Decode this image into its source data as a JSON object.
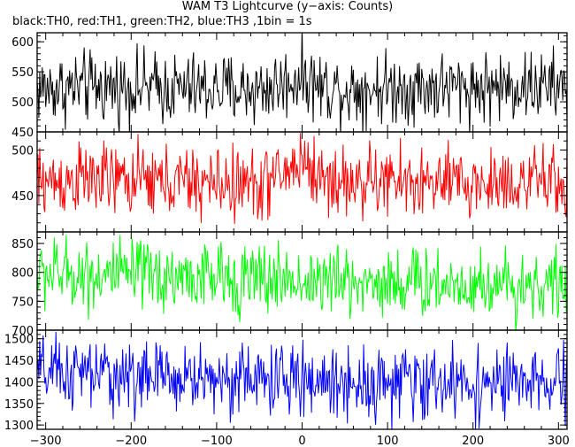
{
  "header": {
    "title": "WAM T3 Lightcurve (y−axis: Counts)",
    "subtitle": "black:TH0, red:TH1, green:TH2, blue:TH3 ,1bin = 1s"
  },
  "chart_data": {
    "type": "line",
    "title": "WAM T3 Lightcurve (y−axis: Counts)",
    "subtitle": "black:TH0, red:TH1, green:TH2, blue:TH3 ,1bin = 1s",
    "xlim": [
      -310,
      310
    ],
    "x_ticks": [
      -300,
      -200,
      -100,
      0,
      100,
      200,
      300
    ],
    "x_tick_labels": [
      "−300",
      "−200",
      "−100",
      "0",
      "100",
      "200",
      "300"
    ],
    "bin_seconds": 1,
    "grid": false,
    "panels": [
      {
        "series": "TH0",
        "color": "#000000",
        "ylim": [
          450,
          615
        ],
        "y_ticks": [
          450,
          500,
          550,
          600
        ],
        "y_tick_labels": [
          "450",
          "500",
          "550",
          "600"
        ],
        "x": [
          -300,
          -250,
          -200,
          -150,
          -100,
          -50,
          -20,
          0,
          20,
          50,
          100,
          150,
          200,
          250,
          300
        ],
        "y": [
          522,
          524,
          525,
          522,
          521,
          520,
          530,
          545,
          525,
          521,
          524,
          525,
          524,
          526,
          524
        ]
      },
      {
        "series": "TH1",
        "color": "#ff0000",
        "ylim": [
          410,
          520
        ],
        "y_ticks": [
          450,
          500
        ],
        "y_tick_labels": [
          "450",
          "500"
        ],
        "x": [
          -300,
          -250,
          -200,
          -150,
          -100,
          -50,
          -20,
          0,
          20,
          50,
          100,
          150,
          200,
          250,
          300
        ],
        "y": [
          465,
          468,
          466,
          465,
          463,
          462,
          474,
          490,
          470,
          464,
          466,
          463,
          462,
          466,
          463
        ]
      },
      {
        "series": "TH2",
        "color": "#00ff00",
        "ylim": [
          700,
          870
        ],
        "y_ticks": [
          700,
          750,
          800,
          850
        ],
        "y_tick_labels": [
          "700",
          "750",
          "800",
          "850"
        ],
        "x": [
          -300,
          -250,
          -200,
          -150,
          -100,
          -50,
          0,
          50,
          100,
          150,
          200,
          250,
          300
        ],
        "y": [
          798,
          797,
          794,
          792,
          790,
          788,
          786,
          784,
          783,
          782,
          780,
          779,
          778
        ]
      },
      {
        "series": "TH3",
        "color": "#0000ff",
        "ylim": [
          1290,
          1520
        ],
        "y_ticks": [
          1300,
          1350,
          1400,
          1450,
          1500
        ],
        "y_tick_labels": [
          "1300",
          "1350",
          "1400",
          "1450",
          "1500"
        ],
        "x": [
          -300,
          -250,
          -200,
          -150,
          -100,
          -50,
          0,
          50,
          100,
          150,
          200,
          250,
          300
        ],
        "y": [
          1420,
          1418,
          1412,
          1410,
          1408,
          1406,
          1402,
          1400,
          1398,
          1397,
          1396,
          1395,
          1392
        ]
      }
    ]
  }
}
